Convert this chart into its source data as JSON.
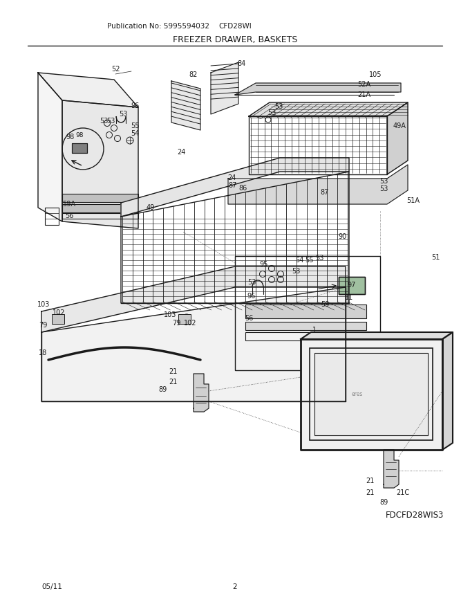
{
  "title": "FREEZER DRAWER, BASKETS",
  "pub_no": "Publication No: 5995594032",
  "model": "CFD28WI",
  "diagram_id": "FDCFD28WIS3",
  "date": "05/11",
  "page": "2",
  "bg_color": "#ffffff",
  "line_color": "#1a1a1a",
  "text_color": "#1a1a1a",
  "figsize": [
    6.8,
    8.8
  ],
  "dpi": 100
}
